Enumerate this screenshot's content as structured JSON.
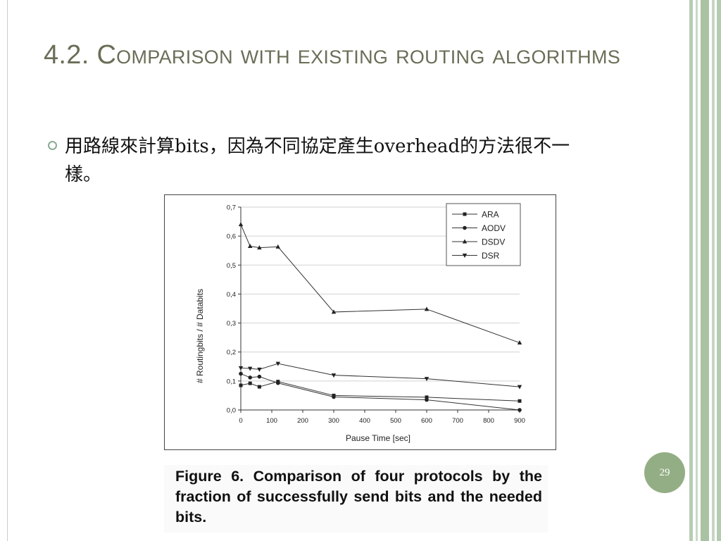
{
  "slide": {
    "title": "4.2. Comparison with existing routing algorithms",
    "bullet": "用路線來計算bits，因為不同協定產生overhead的方法很不一樣。",
    "caption": "Figure 6. Comparison of four protocols by the fraction of successfully send bits and the needed bits.",
    "page_number": "29",
    "colors": {
      "title": "#6b6e57",
      "accent": "#93ae84",
      "bullet": "#8bab97"
    }
  },
  "chart_data": {
    "type": "line",
    "title": "",
    "xlabel": "Pause Time [sec]",
    "ylabel": "# Routingbits / # Databits",
    "xlim": [
      0,
      900
    ],
    "ylim": [
      0,
      0.7
    ],
    "x_ticks": [
      0,
      100,
      200,
      300,
      400,
      500,
      600,
      700,
      800,
      900
    ],
    "y_ticks": [
      0,
      0.1,
      0.2,
      0.3,
      0.4,
      0.5,
      0.6,
      0.7
    ],
    "x_tick_labels": [
      "0",
      "100",
      "200",
      "300",
      "400",
      "500",
      "600",
      "700",
      "800",
      "900"
    ],
    "y_tick_labels": [
      "0,0",
      "0,1",
      "0,2",
      "0,3",
      "0,4",
      "0,5",
      "0,6",
      "0,7"
    ],
    "grid": "horizontal",
    "legend_position": "top-right",
    "series": [
      {
        "name": "ARA",
        "marker": "square",
        "x": [
          0,
          30,
          60,
          120,
          300,
          600,
          900
        ],
        "y": [
          0.085,
          0.092,
          0.08,
          0.098,
          0.05,
          0.044,
          0.031
        ]
      },
      {
        "name": "AODV",
        "marker": "circle",
        "x": [
          0,
          30,
          60,
          120,
          300,
          600,
          900
        ],
        "y": [
          0.125,
          0.112,
          0.115,
          0.093,
          0.045,
          0.035,
          0.0
        ]
      },
      {
        "name": "DSDV",
        "marker": "triangle-up",
        "x": [
          0,
          30,
          60,
          120,
          300,
          600,
          900
        ],
        "y": [
          0.64,
          0.565,
          0.56,
          0.563,
          0.338,
          0.348,
          0.232
        ]
      },
      {
        "name": "DSR",
        "marker": "triangle-down",
        "x": [
          0,
          30,
          60,
          120,
          300,
          600,
          900
        ],
        "y": [
          0.145,
          0.143,
          0.14,
          0.16,
          0.12,
          0.108,
          0.08
        ]
      }
    ]
  }
}
